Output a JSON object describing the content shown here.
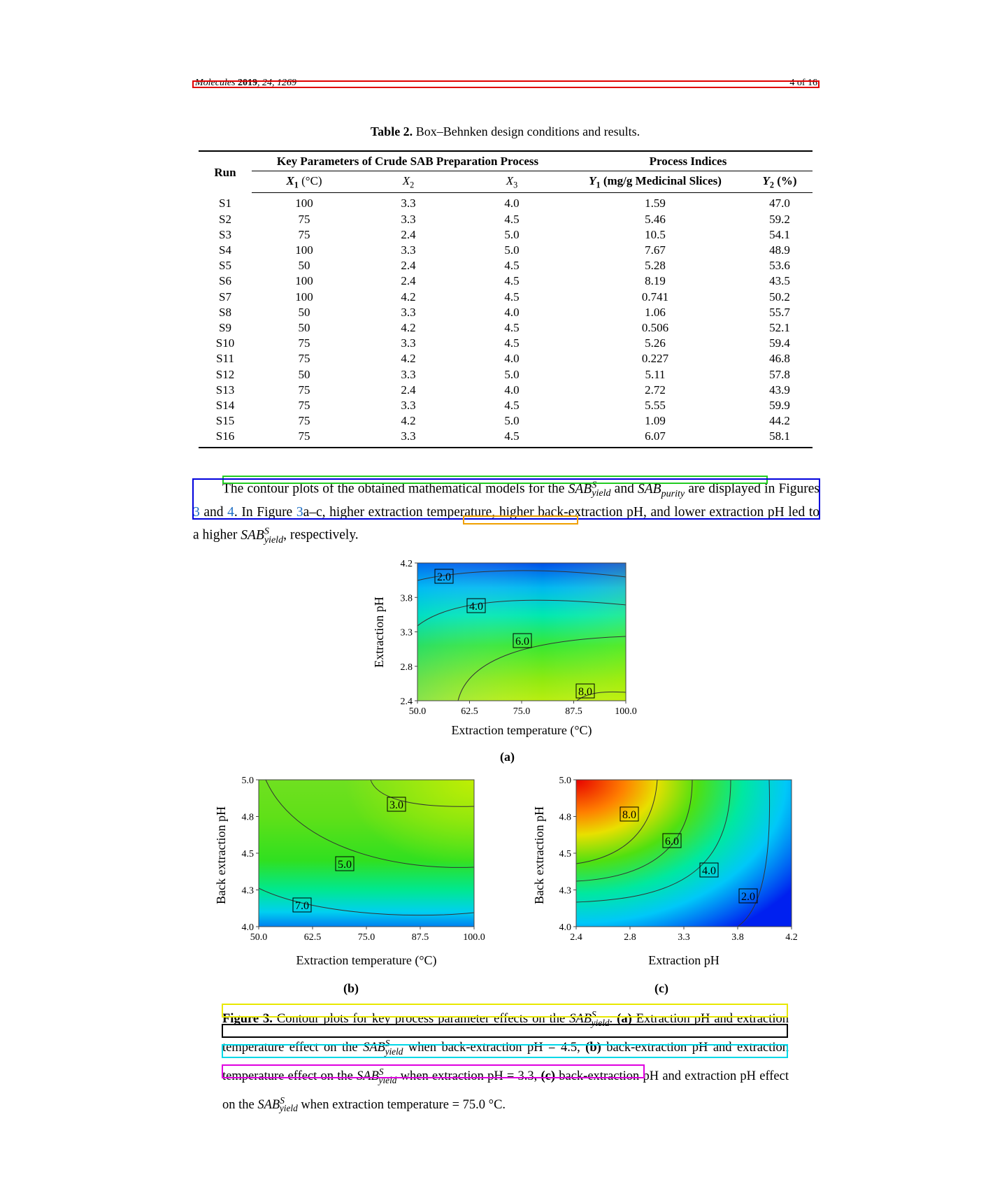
{
  "header": {
    "journal": "Molecules",
    "year": "2019",
    "volume_pages": ", 24, 1269",
    "page": "4 of 16"
  },
  "table": {
    "caption_label": "Table 2.",
    "caption_text": "Box–Behnken design conditions and results.",
    "group_left": "Key Parameters of Crude SAB Preparation Process",
    "group_right": "Process Indices",
    "col_run": "Run",
    "col_x1": "X",
    "col_x1_sub": "1",
    "col_x1_unit": " (°C)",
    "col_x2": "X",
    "col_x2_sub": "2",
    "col_x3": "X",
    "col_x3_sub": "3",
    "col_y1": "Y",
    "col_y1_sub": "1",
    "col_y1_unit": " (mg/g Medicinal Slices)",
    "col_y2": "Y",
    "col_y2_sub": "2",
    "col_y2_unit": " (%)",
    "rows": [
      [
        "S1",
        "100",
        "3.3",
        "4.0",
        "1.59",
        "47.0"
      ],
      [
        "S2",
        "75",
        "3.3",
        "4.5",
        "5.46",
        "59.2"
      ],
      [
        "S3",
        "75",
        "2.4",
        "5.0",
        "10.5",
        "54.1"
      ],
      [
        "S4",
        "100",
        "3.3",
        "5.0",
        "7.67",
        "48.9"
      ],
      [
        "S5",
        "50",
        "2.4",
        "4.5",
        "5.28",
        "53.6"
      ],
      [
        "S6",
        "100",
        "2.4",
        "4.5",
        "8.19",
        "43.5"
      ],
      [
        "S7",
        "100",
        "4.2",
        "4.5",
        "0.741",
        "50.2"
      ],
      [
        "S8",
        "50",
        "3.3",
        "4.0",
        "1.06",
        "55.7"
      ],
      [
        "S9",
        "50",
        "4.2",
        "4.5",
        "0.506",
        "52.1"
      ],
      [
        "S10",
        "75",
        "3.3",
        "4.5",
        "5.26",
        "59.4"
      ],
      [
        "S11",
        "75",
        "4.2",
        "4.0",
        "0.227",
        "46.8"
      ],
      [
        "S12",
        "50",
        "3.3",
        "5.0",
        "5.11",
        "57.8"
      ],
      [
        "S13",
        "75",
        "2.4",
        "4.0",
        "2.72",
        "43.9"
      ],
      [
        "S14",
        "75",
        "3.3",
        "4.5",
        "5.55",
        "59.9"
      ],
      [
        "S15",
        "75",
        "4.2",
        "5.0",
        "1.09",
        "44.2"
      ],
      [
        "S16",
        "75",
        "3.3",
        "4.5",
        "6.07",
        "58.1"
      ]
    ]
  },
  "paragraph": {
    "t1": "The contour plots of the obtained mathematical models for the ",
    "sab": "SAB",
    "sup_s": "S",
    "sub_yield": "yield",
    "and": " and ",
    "sub_purity": "purity",
    "t2": " are displayed in Figures ",
    "ref3": "3",
    "and2": " and ",
    "ref4": "4",
    "t3": ". In Figure ",
    "ref3b": "3",
    "t4": "a–c, higher extraction temperature, higher back-extraction pH, and lower extraction pH led to a higher ",
    "t5": ", respectively."
  },
  "figures": {
    "a": {
      "label": "(a)",
      "xlabel": "Extraction temperature (°C)",
      "ylabel": "Extraction pH",
      "xticks": [
        "50.0",
        "62.5",
        "75.0",
        "87.5",
        "100.0"
      ],
      "yticks": [
        "2.4",
        "2.8",
        "3.3",
        "3.8",
        "4.2"
      ],
      "contour_labels": [
        "2.0",
        "4.0",
        "6.0",
        "8.0"
      ]
    },
    "b": {
      "label": "(b)",
      "xlabel": "Extraction temperature (°C)",
      "ylabel": "Back extraction pH",
      "xticks": [
        "50.0",
        "62.5",
        "75.0",
        "87.5",
        "100.0"
      ],
      "yticks": [
        "4.0",
        "4.3",
        "4.5",
        "4.8",
        "5.0"
      ],
      "contour_labels": [
        "3.0",
        "5.0",
        "7.0"
      ]
    },
    "c": {
      "label": "(c)",
      "xlabel": "Extraction pH",
      "ylabel": "Back extraction pH",
      "xticks": [
        "2.4",
        "2.8",
        "3.3",
        "3.8",
        "4.2"
      ],
      "yticks": [
        "4.0",
        "4.3",
        "4.5",
        "4.8",
        "5.0"
      ],
      "contour_labels": [
        "8.0",
        "6.0",
        "4.0",
        "2.0"
      ]
    }
  },
  "figcap": {
    "label": "Figure 3.",
    "t1": " Contour plots for key process parameter effects on the ",
    "sab": "SAB",
    "sup_s": "S",
    "sub_yield": "yield",
    "t2": ". ",
    "la": "(a)",
    "t3": " Extraction pH and extraction temperature effect on the ",
    "t4": " when back-extraction pH = 4.5, ",
    "lb": "(b)",
    "t5": " back-extraction pH and extraction temperature effect on the ",
    "t6": " when extraction pH = 3.3, ",
    "lc": "(c)",
    "t7": " back-extraction pH and extraction pH effect on the ",
    "t8": " when extraction temperature = 75.0 °C."
  },
  "colors": {
    "box_red": "#e00000",
    "box_green": "#22cc22",
    "box_blue": "#0000dd",
    "box_orange": "#f0a000",
    "box_yellow": "#e8e800",
    "box_black": "#000000",
    "box_cyan": "#00d8e8",
    "box_magenta": "#e000e0",
    "link": "#1f6fc5"
  }
}
